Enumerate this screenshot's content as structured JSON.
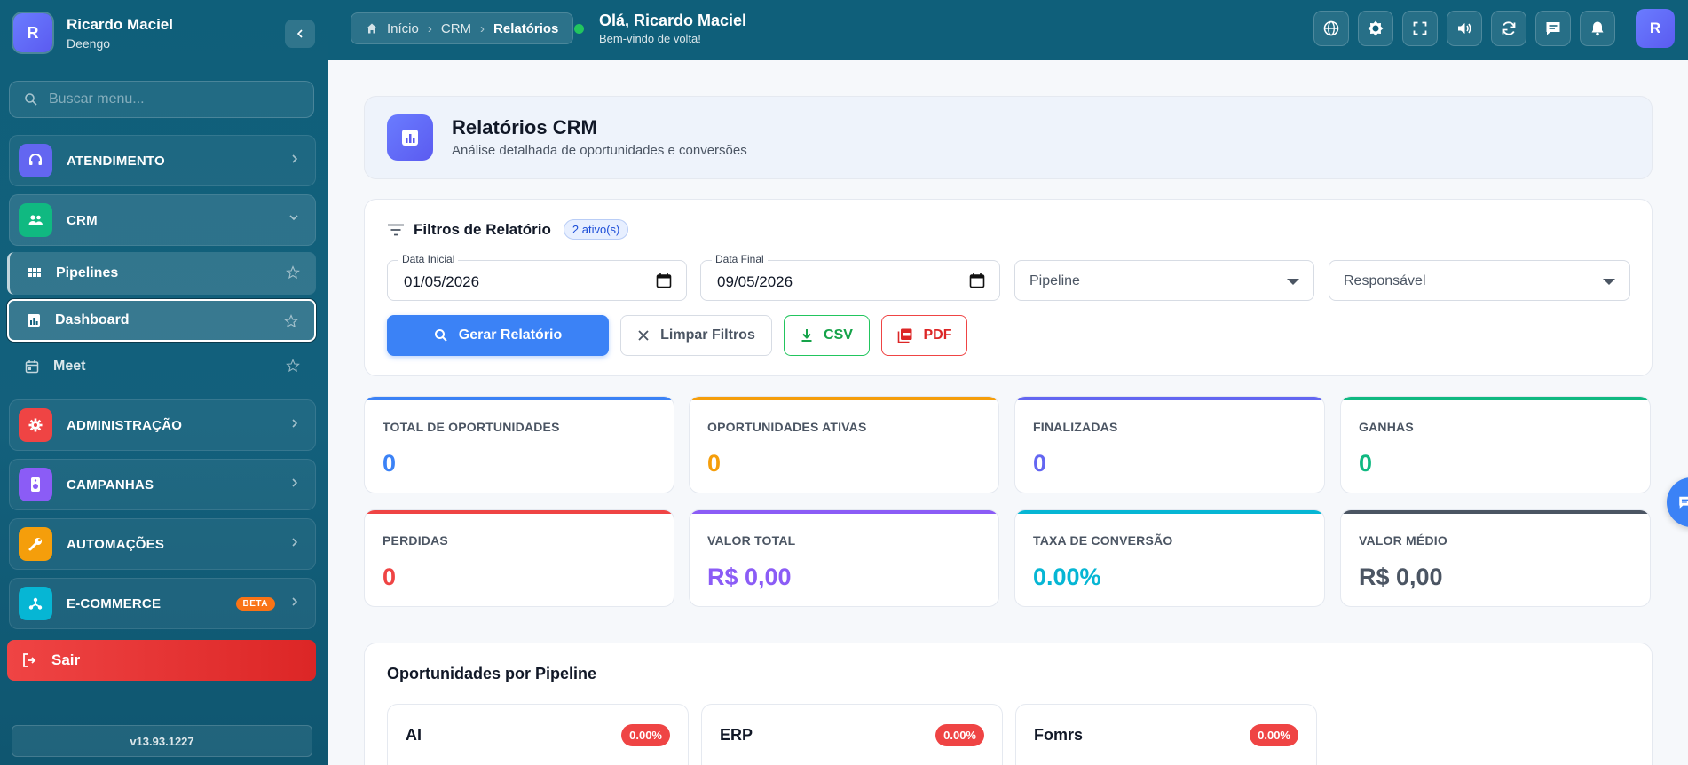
{
  "sidebar": {
    "avatar_letter": "R",
    "user_name": "Ricardo Maciel",
    "company": "Deengo",
    "search_placeholder": "Buscar menu...",
    "items": [
      {
        "label": "ATENDIMENTO",
        "icon": "headset-icon",
        "color": "#6366f1"
      },
      {
        "label": "CRM",
        "icon": "people-icon",
        "color": "#10b981"
      },
      {
        "label": "ADMINISTRAÇÃO",
        "icon": "gear-icon",
        "color": "#ef4444"
      },
      {
        "label": "CAMPANHAS",
        "icon": "speaker-icon",
        "color": "#8b5cf6"
      },
      {
        "label": "AUTOMAÇÕES",
        "icon": "wrench-icon",
        "color": "#f59e0b"
      },
      {
        "label": "E-COMMERCE",
        "icon": "hub-icon",
        "color": "#06b6d4",
        "badge": "BETA"
      }
    ],
    "sub_items": [
      {
        "label": "Pipelines",
        "icon": "grid-icon"
      },
      {
        "label": "Dashboard",
        "icon": "chart-icon"
      },
      {
        "label": "Meet",
        "icon": "calendar-icon"
      }
    ],
    "logout_label": "Sair",
    "version": "v13.93.1227"
  },
  "topbar": {
    "breadcrumbs": [
      "Início",
      "CRM",
      "Relatórios"
    ],
    "greeting": "Olá, Ricardo Maciel",
    "subgreeting": "Bem-vindo de volta!",
    "avatar_letter": "R"
  },
  "header": {
    "title": "Relatórios CRM",
    "subtitle": "Análise detalhada de oportunidades e conversões"
  },
  "filters": {
    "title": "Filtros de Relatório",
    "active_badge": "2 ativo(s)",
    "start_label": "Data Inicial",
    "start_value": "01/05/2026",
    "end_label": "Data Final",
    "end_value": "09/05/2026",
    "pipeline_placeholder": "Pipeline",
    "owner_placeholder": "Responsável",
    "generate_label": "Gerar Relatório",
    "clear_label": "Limpar Filtros",
    "csv_label": "CSV",
    "pdf_label": "PDF"
  },
  "stats": [
    {
      "label": "TOTAL DE OPORTUNIDADES",
      "value": "0",
      "color": "#3b82f6"
    },
    {
      "label": "OPORTUNIDADES ATIVAS",
      "value": "0",
      "color": "#f59e0b"
    },
    {
      "label": "FINALIZADAS",
      "value": "0",
      "color": "#6366f1"
    },
    {
      "label": "GANHAS",
      "value": "0",
      "color": "#10b981"
    },
    {
      "label": "PERDIDAS",
      "value": "0",
      "color": "#ef4444"
    },
    {
      "label": "VALOR TOTAL",
      "value": "R$ 0,00",
      "color": "#8b5cf6"
    },
    {
      "label": "TAXA DE CONVERSÃO",
      "value": "0.00%",
      "color": "#06b6d4"
    },
    {
      "label": "VALOR MÉDIO",
      "value": "R$ 0,00",
      "color": "#4b5563"
    }
  ],
  "pipelines_section": {
    "title": "Oportunidades por Pipeline",
    "items": [
      {
        "name": "AI",
        "rate": "0.00%"
      },
      {
        "name": "ERP",
        "rate": "0.00%"
      },
      {
        "name": "Fomrs",
        "rate": "0.00%"
      }
    ]
  }
}
